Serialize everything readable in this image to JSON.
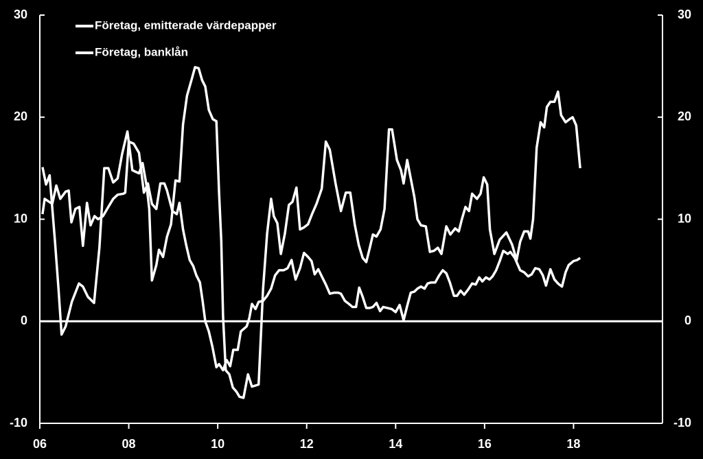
{
  "chart_data": {
    "type": "line",
    "background": "#000000",
    "xlim": [
      2006,
      2020
    ],
    "xticks": [
      {
        "value": 2006,
        "label": "06"
      },
      {
        "value": 2008,
        "label": "08"
      },
      {
        "value": 2010,
        "label": "10"
      },
      {
        "value": 2012,
        "label": "12"
      },
      {
        "value": 2014,
        "label": "14"
      },
      {
        "value": 2016,
        "label": "16"
      },
      {
        "value": 2018,
        "label": "18"
      }
    ],
    "ylim": [
      -10,
      30
    ],
    "yticks": [
      -10,
      0,
      10,
      20,
      30
    ],
    "y2lim": [
      -10,
      30
    ],
    "y2ticks": [
      -10,
      0,
      10,
      20,
      30
    ],
    "legend": "upper left",
    "series": [
      {
        "name": "Företag, emitterade värdepapper",
        "color": "#ffffff",
        "x": [
          2006.06,
          2006.14,
          2006.22,
          2006.34,
          2006.42,
          2006.49,
          2006.58,
          2006.72,
          2006.88,
          2006.97,
          2007.08,
          2007.22,
          2007.34,
          2007.45,
          2007.54,
          2007.65,
          2007.75,
          2007.85,
          2007.97,
          2008.08,
          2008.23,
          2008.31,
          2008.4,
          2008.46,
          2008.52,
          2008.62,
          2008.68,
          2008.77,
          2008.86,
          2008.95,
          2009.05,
          2009.14,
          2009.22,
          2009.31,
          2009.42,
          2009.49,
          2009.57,
          2009.65,
          2009.72,
          2009.8,
          2009.89,
          2009.97,
          2010.03,
          2010.08,
          2010.12,
          2010.18,
          2010.26,
          2010.34,
          2010.42,
          2010.49,
          2010.58,
          2010.68,
          2010.77,
          2010.92,
          2011.02,
          2011.11,
          2011.2,
          2011.26,
          2011.34,
          2011.42,
          2011.51,
          2011.6,
          2011.68,
          2011.77,
          2011.85,
          2011.94,
          2012.03,
          2012.12,
          2012.22,
          2012.34,
          2012.43,
          2012.52,
          2012.65,
          2012.77,
          2012.88,
          2012.98,
          2013.08,
          2013.17,
          2013.26,
          2013.34,
          2013.42,
          2013.49,
          2013.57,
          2013.66,
          2013.75,
          2013.85,
          2013.92,
          2014.03,
          2014.12,
          2014.18,
          2014.26,
          2014.34,
          2014.42,
          2014.49,
          2014.57,
          2014.68,
          2014.77,
          2014.86,
          2014.95,
          2015.03,
          2015.14,
          2015.23,
          2015.34,
          2015.42,
          2015.49,
          2015.57,
          2015.65,
          2015.72,
          2015.83,
          2015.91,
          2015.98,
          2016.06,
          2016.12,
          2016.22,
          2016.34,
          2016.49,
          2016.62,
          2016.72,
          2016.8,
          2016.89,
          2016.98,
          2017.03,
          2017.09,
          2017.17,
          2017.26,
          2017.34,
          2017.4,
          2017.48,
          2017.57,
          2017.65,
          2017.72,
          2017.82,
          2017.91,
          2017.98,
          2018.06,
          2018.15
        ],
        "values": [
          15.1,
          13.4,
          14.3,
          7.9,
          3.2,
          -1.3,
          -0.5,
          1.9,
          3.7,
          3.4,
          2.4,
          1.8,
          7.2,
          15.0,
          15.0,
          13.6,
          14.0,
          16.4,
          18.6,
          14.8,
          14.5,
          15.5,
          13.3,
          11,
          4,
          5.5,
          7,
          6.3,
          8.3,
          9.5,
          13.8,
          13.7,
          19.3,
          22.1,
          23.8,
          24.9,
          24.8,
          23.6,
          23.0,
          20.7,
          19.8,
          19.6,
          12.6,
          7.9,
          0.5,
          -4.8,
          -5.2,
          -6.5,
          -6.9,
          -7.4,
          -7.5,
          -5.2,
          -6.4,
          -6.2,
          3.2,
          8.6,
          12,
          10.3,
          9.6,
          6.6,
          8.6,
          11.4,
          11.7,
          13.1,
          9,
          9.2,
          9.5,
          10.5,
          11.5,
          13,
          17.6,
          16.8,
          13.5,
          10.8,
          12.6,
          12.6,
          9.5,
          7.5,
          6.2,
          5.8,
          7.2,
          8.5,
          8.3,
          9,
          11,
          18.8,
          18.8,
          15.8,
          14.8,
          13.5,
          15.8,
          14,
          12.2,
          10,
          9.4,
          9.3,
          6.8,
          6.9,
          7.2,
          6.6,
          9.3,
          8.5,
          9.1,
          8.8,
          10,
          11.2,
          10.8,
          12.5,
          12,
          12.5,
          14.1,
          13.4,
          9,
          6.6,
          8,
          8.7,
          7.5,
          6,
          7.8,
          8.8,
          8.8,
          8.1,
          10,
          17,
          19.5,
          19,
          21,
          21.5,
          21.5,
          22.5,
          20.2,
          19.5,
          19.8,
          20,
          19.2,
          15
        ]
      },
      {
        "name": "Företag, banklån",
        "color": "#ffffff",
        "x": [
          2006.06,
          2006.11,
          2006.28,
          2006.37,
          2006.46,
          2006.58,
          2006.65,
          2006.71,
          2006.8,
          2006.89,
          2006.97,
          2007.06,
          2007.14,
          2007.23,
          2007.31,
          2007.42,
          2007.54,
          2007.65,
          2007.75,
          2007.88,
          2007.92,
          2008.0,
          2008.11,
          2008.23,
          2008.34,
          2008.43,
          2008.52,
          2008.62,
          2008.71,
          2008.8,
          2008.86,
          2008.98,
          2009.08,
          2009.14,
          2009.22,
          2009.29,
          2009.37,
          2009.45,
          2009.52,
          2009.6,
          2009.66,
          2009.72,
          2009.8,
          2009.88,
          2009.97,
          2010.03,
          2010.12,
          2010.2,
          2010.28,
          2010.35,
          2010.45,
          2010.52,
          2010.65,
          2010.71,
          2010.77,
          2010.85,
          2010.92,
          2011.02,
          2011.11,
          2011.2,
          2011.29,
          2011.38,
          2011.48,
          2011.57,
          2011.66,
          2011.75,
          2011.85,
          2011.94,
          2012.03,
          2012.11,
          2012.18,
          2012.26,
          2012.34,
          2012.43,
          2012.52,
          2012.62,
          2012.71,
          2012.77,
          2012.86,
          2012.95,
          2013.03,
          2013.11,
          2013.18,
          2013.26,
          2013.34,
          2013.42,
          2013.49,
          2013.57,
          2013.65,
          2013.72,
          2013.82,
          2013.91,
          2014.0,
          2014.09,
          2014.18,
          2014.26,
          2014.34,
          2014.42,
          2014.49,
          2014.57,
          2014.65,
          2014.72,
          2014.8,
          2014.89,
          2014.98,
          2015.06,
          2015.14,
          2015.22,
          2015.31,
          2015.38,
          2015.46,
          2015.54,
          2015.63,
          2015.72,
          2015.8,
          2015.88,
          2015.95,
          2016.03,
          2016.11,
          2016.18,
          2016.26,
          2016.34,
          2016.42,
          2016.52,
          2016.58,
          2016.68,
          2016.8,
          2016.89,
          2016.98,
          2017.06,
          2017.14,
          2017.23,
          2017.31,
          2017.38,
          2017.48,
          2017.57,
          2017.65,
          2017.74,
          2017.82,
          2017.89,
          2018.0,
          2018.08,
          2018.15
        ],
        "values": [
          10.5,
          12,
          11.5,
          13.3,
          12,
          12.7,
          12.8,
          9.7,
          11,
          11.2,
          7.4,
          11.6,
          9.4,
          10.3,
          10,
          10.3,
          11.2,
          12,
          12.4,
          12.5,
          12.6,
          17.6,
          17.4,
          16.5,
          12.6,
          13.5,
          11.5,
          11,
          13.5,
          13.5,
          12.8,
          10.8,
          10.5,
          11.6,
          9,
          7.5,
          6,
          5.4,
          4.5,
          3.8,
          2,
          0,
          -1,
          -2.5,
          -4.5,
          -4.2,
          -4.8,
          -3.8,
          -4.4,
          -2.8,
          -2.8,
          -1,
          -0.5,
          0.3,
          1.7,
          1.2,
          1.9,
          2,
          2.5,
          3.2,
          4.5,
          5,
          5,
          5.2,
          6,
          4.1,
          5.2,
          6.7,
          6.3,
          5.9,
          4.6,
          5.1,
          4.4,
          3.6,
          2.7,
          2.8,
          2.8,
          2.7,
          2,
          1.7,
          1.4,
          1.4,
          3.3,
          2.4,
          1.3,
          1.3,
          1.4,
          1.8,
          1,
          1.4,
          1.3,
          1.2,
          0.9,
          1.6,
          0.1,
          1.5,
          2.8,
          2.9,
          3.2,
          3.4,
          3.2,
          3.7,
          3.8,
          3.8,
          4.5,
          5,
          4.7,
          3.8,
          2.5,
          2.5,
          3,
          2.6,
          3.1,
          3.7,
          3.6,
          4.3,
          3.9,
          4.3,
          4.1,
          4.4,
          5,
          5.9,
          6.9,
          6.6,
          6.8,
          6.2,
          5,
          4.8,
          4.4,
          4.6,
          5.2,
          5.1,
          4.5,
          3.5,
          5.1,
          4.1,
          3.7,
          3.4,
          4.8,
          5.5,
          5.9,
          6,
          6.2
        ]
      }
    ]
  }
}
